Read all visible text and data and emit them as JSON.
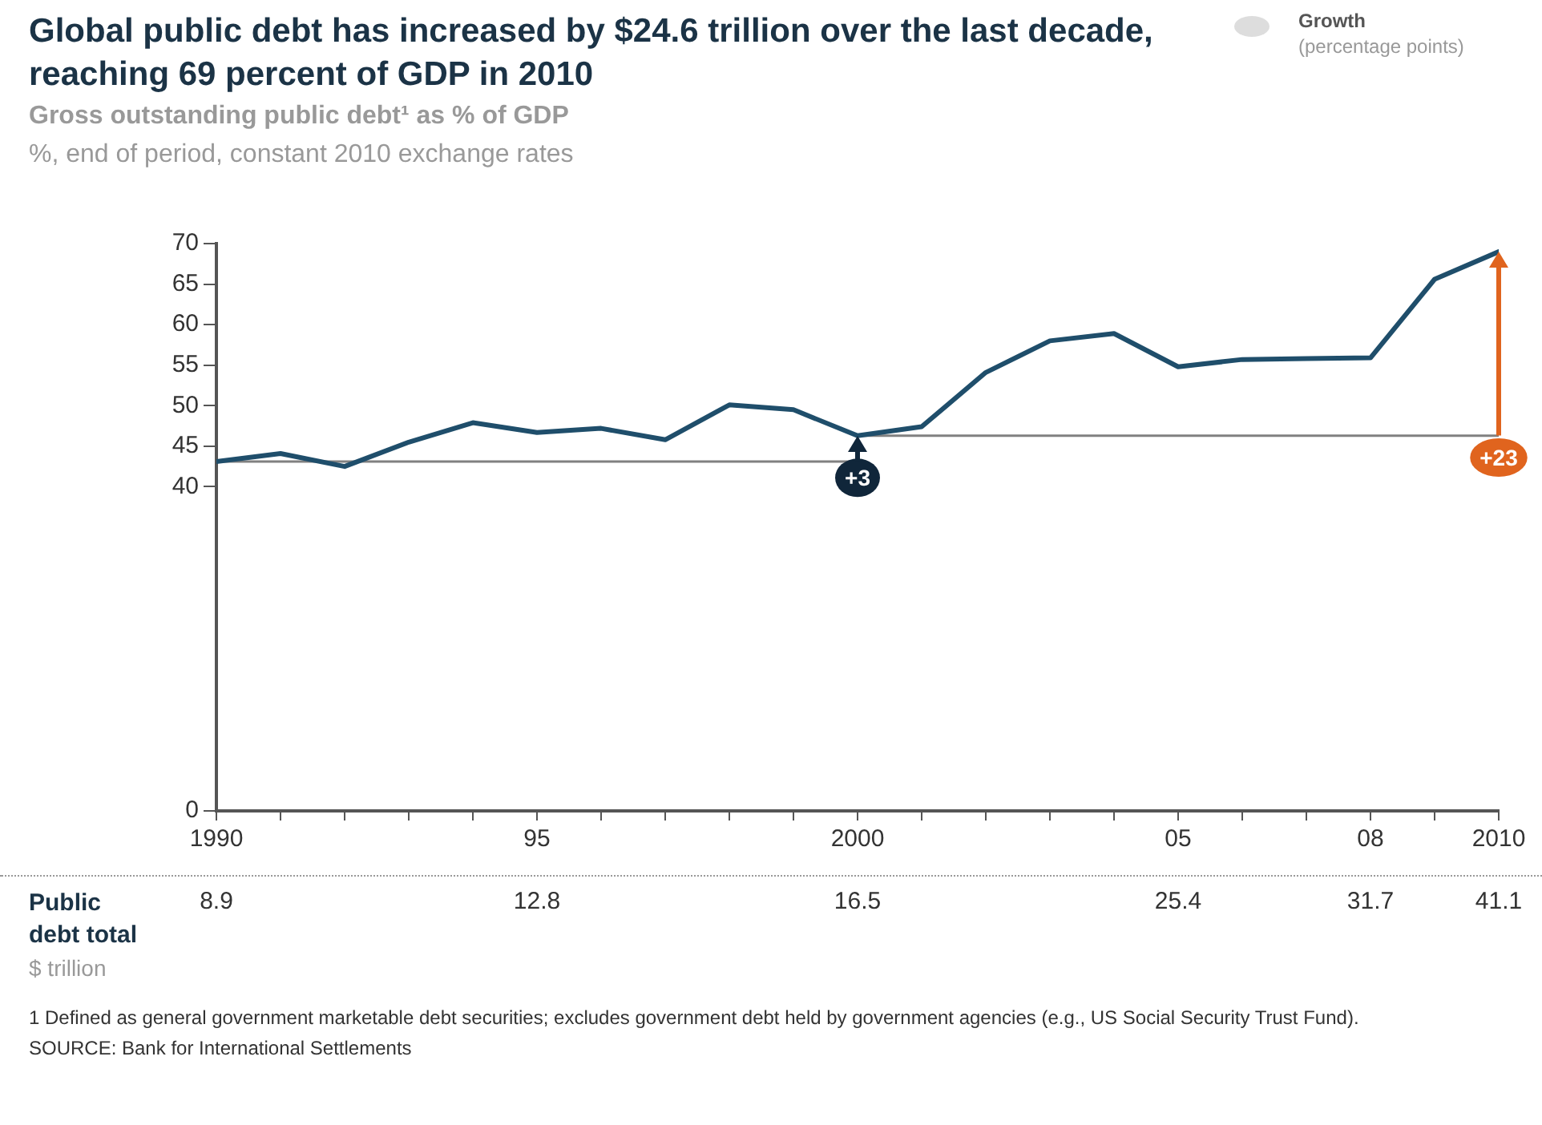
{
  "chart_data": [
    {
      "type": "line",
      "title": "Global public debt has increased by $24.6 trillion over the last decade, reaching 69 percent of GDP in 2010",
      "subtitle": "Gross outstanding public debt¹ as % of GDP",
      "ylabel": "%, end of period, constant 2010 exchange rates",
      "legend_title": "Growth",
      "xlim": [
        1990,
        2010
      ],
      "xticks": [
        1990,
        {
          "value": 1991,
          "label": null
        },
        {
          "value": 1992,
          "label": null
        },
        {
          "value": 1993,
          "label": null
        },
        {
          "value": 1994,
          "label": null
        },
        {
          "value": 1995,
          "label": "95"
        },
        {
          "value": 1996,
          "label": null
        },
        {
          "value": 1997,
          "label": null
        },
        {
          "value": 1998,
          "label": null
        },
        {
          "value": 1999,
          "label": null
        },
        2000,
        {
          "value": 2001,
          "label": null
        },
        {
          "value": 2002,
          "label": null
        },
        {
          "value": 2003,
          "label": null
        },
        {
          "value": 2004,
          "label": null
        },
        {
          "value": 2005,
          "label": "05"
        },
        {
          "value": 2006,
          "label": null
        },
        {
          "value": 2007,
          "label": null
        },
        {
          "value": 2008,
          "label": "08"
        },
        {
          "value": 2009,
          "label": null
        },
        2010
      ],
      "ylim": [
        0,
        70
      ],
      "yticks": [
        0,
        40,
        45,
        50,
        55,
        60,
        65,
        70
      ],
      "grid": false,
      "legend": false,
      "marker": "none",
      "line_style": "solid",
      "series": [
        {
          "color": "#1f4e6b",
          "x": [
            1990,
            1991,
            1992,
            1993,
            1994,
            1995,
            1996,
            1997,
            1998,
            1999,
            2000,
            2001,
            2002,
            2003,
            2004,
            2005,
            2006,
            2007,
            2008,
            2009,
            2010
          ],
          "values": [
            43.1,
            44.1,
            42.5,
            45.5,
            47.9,
            46.7,
            47.2,
            45.8,
            50.1,
            49.5,
            46.3,
            47.4,
            54.1,
            58.0,
            58.9,
            54.8,
            55.7,
            55.8,
            55.9,
            65.6,
            69
          ]
        },
        {
          "color": "#808080",
          "x": [
            1990,
            2000
          ],
          "values": [
            43.1,
            43.1
          ]
        },
        {
          "color": "#808080",
          "x": [
            2000,
            2010
          ],
          "values": [
            46.3,
            46.3
          ]
        }
      ],
      "annotations": [
        {
          "text": "+3",
          "x": 2000,
          "y": 41.1
        },
        {
          "text": "+23",
          "x": 2010,
          "y": 43.6
        },
        "(percentage points)"
      ]
    },
    {
      "type": "other",
      "title": "Public debt total",
      "ylabel": "$ trillion",
      "data_labels": true,
      "values": [
        8.9,
        12.8,
        16.5,
        25.4,
        31.7,
        41.1
      ],
      "annotations": [
        "1 Defined as general government marketable debt securities; excludes government debt held by government agencies (e.g., US Social Security Trust Fund).",
        "SOURCE: Bank for International Settlements"
      ]
    }
  ]
}
